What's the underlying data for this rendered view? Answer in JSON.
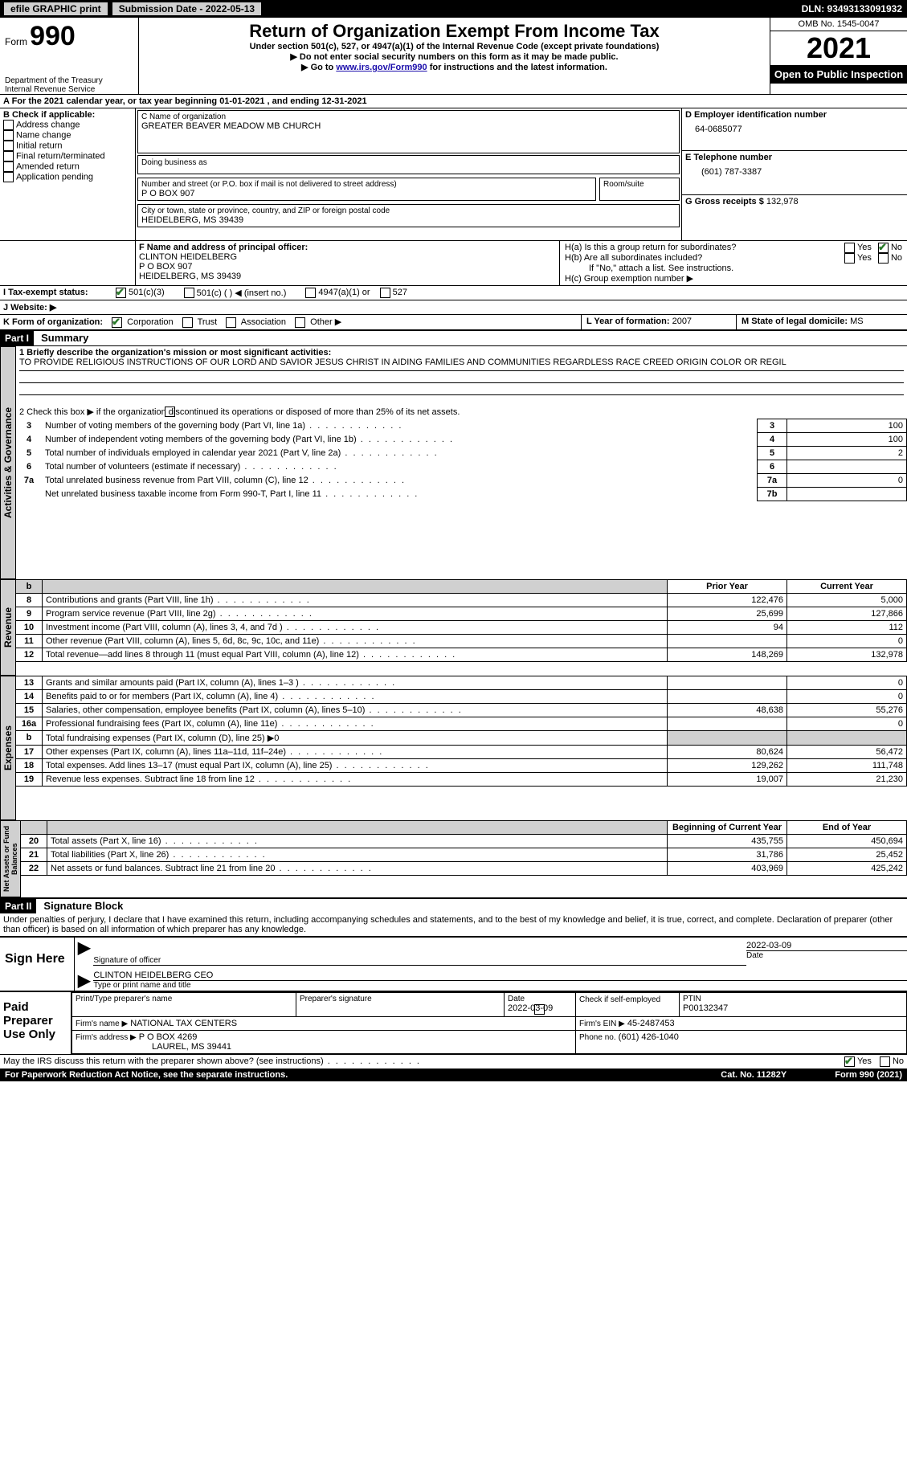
{
  "topbar": {
    "efile_label": "efile GRAPHIC print",
    "submission_label": "Submission Date - 2022-05-13",
    "dln_label": "DLN: 93493133091932"
  },
  "header": {
    "form_word": "Form",
    "form_number": "990",
    "dept": "Department of the Treasury",
    "irs": "Internal Revenue Service",
    "title": "Return of Organization Exempt From Income Tax",
    "sub1": "Under section 501(c), 527, or 4947(a)(1) of the Internal Revenue Code (except private foundations)",
    "sub2": "▶ Do not enter social security numbers on this form as it may be made public.",
    "sub3_pre": "▶ Go to ",
    "sub3_link": "www.irs.gov/Form990",
    "sub3_post": " for instructions and the latest information.",
    "omb": "OMB No. 1545-0047",
    "year": "2021",
    "open": "Open to Public Inspection"
  },
  "period": {
    "a_line": "A For the 2021 calendar year, or tax year beginning 01-01-2021    , and ending 12-31-2021"
  },
  "sectionB": {
    "heading": "B Check if applicable:",
    "items": [
      "Address change",
      "Name change",
      "Initial return",
      "Final return/terminated",
      "Amended return",
      "Application pending"
    ]
  },
  "sectionC": {
    "name_lbl": "C Name of organization",
    "name": "GREATER BEAVER MEADOW MB CHURCH",
    "dba_lbl": "Doing business as",
    "dba": "",
    "street_lbl": "Number and street (or P.O. box if mail is not delivered to street address)",
    "room_lbl": "Room/suite",
    "street": "P O BOX 907",
    "city_lbl": "City or town, state or province, country, and ZIP or foreign postal code",
    "city": "HEIDELBERG, MS  39439"
  },
  "sectionD": {
    "lbl": "D Employer identification number",
    "val": "64-0685077"
  },
  "sectionE": {
    "lbl": "E Telephone number",
    "val": "(601) 787-3387"
  },
  "sectionG": {
    "lbl": "G Gross receipts $",
    "val": "132,978"
  },
  "sectionF": {
    "lbl": "F  Name and address of principal officer:",
    "name": "CLINTON HEIDELBERG",
    "street": "P O BOX 907",
    "city": "HEIDELBERG, MS  39439"
  },
  "sectionH": {
    "a": "H(a)  Is this a group return for subordinates?",
    "a_yes": "Yes",
    "a_no": "No",
    "b": "H(b)  Are all subordinates included?",
    "b_yes": "Yes",
    "b_no": "No",
    "b_note": "If \"No,\" attach a list. See instructions.",
    "c": "H(c)  Group exemption number ▶"
  },
  "sectionI": {
    "lbl": "I  Tax-exempt status:",
    "c3": "501(c)(3)",
    "c_blank": "501(c) (   ) ◀ (insert no.)",
    "a4947": "4947(a)(1) or",
    "s527": "527"
  },
  "sectionJ": {
    "lbl": "J  Website: ▶"
  },
  "sectionK": {
    "lbl": "K Form of organization:",
    "corp": "Corporation",
    "trust": "Trust",
    "assoc": "Association",
    "other": "Other ▶"
  },
  "sectionL": {
    "lbl": "L Year of formation:",
    "val": "2007"
  },
  "sectionM": {
    "lbl": "M State of legal domicile:",
    "val": "MS"
  },
  "part1": {
    "bar": "Part I",
    "title": "Summary"
  },
  "summary": {
    "line1_lbl": "1  Briefly describe the organization's mission or most significant activities:",
    "line1_text": "TO PROVIDE RELIGIOUS INSTRUCTIONS OF OUR LORD AND SAVIOR JESUS CHRIST IN AIDING FAMILIES AND COMMUNITIES REGARDLESS RACE CREED ORIGIN COLOR OR REGIL",
    "line2": "2  Check this box ▶        if the organization discontinued its operations or disposed of more than 25% of its net assets.",
    "rows_top": [
      {
        "n": "3",
        "d": "Number of voting members of the governing body (Part VI, line 1a)",
        "box": "3",
        "v": "100"
      },
      {
        "n": "4",
        "d": "Number of independent voting members of the governing body (Part VI, line 1b)",
        "box": "4",
        "v": "100"
      },
      {
        "n": "5",
        "d": "Total number of individuals employed in calendar year 2021 (Part V, line 2a)",
        "box": "5",
        "v": "2"
      },
      {
        "n": "6",
        "d": "Total number of volunteers (estimate if necessary)",
        "box": "6",
        "v": ""
      },
      {
        "n": "7a",
        "d": "Total unrelated business revenue from Part VIII, column (C), line 12",
        "box": "7a",
        "v": "0"
      },
      {
        "n": "",
        "d": "Net unrelated business taxable income from Form 990-T, Part I, line 11",
        "box": "7b",
        "v": ""
      }
    ],
    "col_prior": "Prior Year",
    "col_current": "Current Year",
    "rev_rows": [
      {
        "n": "8",
        "d": "Contributions and grants (Part VIII, line 1h)",
        "p": "122,476",
        "c": "5,000"
      },
      {
        "n": "9",
        "d": "Program service revenue (Part VIII, line 2g)",
        "p": "25,699",
        "c": "127,866"
      },
      {
        "n": "10",
        "d": "Investment income (Part VIII, column (A), lines 3, 4, and 7d )",
        "p": "94",
        "c": "112"
      },
      {
        "n": "11",
        "d": "Other revenue (Part VIII, column (A), lines 5, 6d, 8c, 9c, 10c, and 11e)",
        "p": "",
        "c": "0"
      },
      {
        "n": "12",
        "d": "Total revenue—add lines 8 through 11 (must equal Part VIII, column (A), line 12)",
        "p": "148,269",
        "c": "132,978"
      }
    ],
    "exp_rows": [
      {
        "n": "13",
        "d": "Grants and similar amounts paid (Part IX, column (A), lines 1–3 )",
        "p": "",
        "c": "0"
      },
      {
        "n": "14",
        "d": "Benefits paid to or for members (Part IX, column (A), line 4)",
        "p": "",
        "c": "0"
      },
      {
        "n": "15",
        "d": "Salaries, other compensation, employee benefits (Part IX, column (A), lines 5–10)",
        "p": "48,638",
        "c": "55,276"
      },
      {
        "n": "16a",
        "d": "Professional fundraising fees (Part IX, column (A), line 11e)",
        "p": "",
        "c": "0"
      },
      {
        "n": "b",
        "d": "Total fundraising expenses (Part IX, column (D), line 25) ▶0",
        "p": "SHADE",
        "c": "SHADE"
      },
      {
        "n": "17",
        "d": "Other expenses (Part IX, column (A), lines 11a–11d, 11f–24e)",
        "p": "80,624",
        "c": "56,472"
      },
      {
        "n": "18",
        "d": "Total expenses. Add lines 13–17 (must equal Part IX, column (A), line 25)",
        "p": "129,262",
        "c": "111,748"
      },
      {
        "n": "19",
        "d": "Revenue less expenses. Subtract line 18 from line 12",
        "p": "19,007",
        "c": "21,230"
      }
    ],
    "col_begin": "Beginning of Current Year",
    "col_end": "End of Year",
    "na_rows": [
      {
        "n": "20",
        "d": "Total assets (Part X, line 16)",
        "p": "435,755",
        "c": "450,694"
      },
      {
        "n": "21",
        "d": "Total liabilities (Part X, line 26)",
        "p": "31,786",
        "c": "25,452"
      },
      {
        "n": "22",
        "d": "Net assets or fund balances. Subtract line 21 from line 20",
        "p": "403,969",
        "c": "425,242"
      }
    ]
  },
  "vtabs": {
    "gov": "Activities & Governance",
    "rev": "Revenue",
    "exp": "Expenses",
    "na": "Net Assets or Fund Balances"
  },
  "part2": {
    "bar": "Part II",
    "title": "Signature Block"
  },
  "sig": {
    "perjury": "Under penalties of perjury, I declare that I have examined this return, including accompanying schedules and statements, and to the best of my knowledge and belief, it is true, correct, and complete. Declaration of preparer (other than officer) is based on all information of which preparer has any knowledge.",
    "sign_here": "Sign Here",
    "sig_officer_lbl": "Signature of officer",
    "sig_date": "2022-03-09",
    "date_lbl": "Date",
    "name_title": "CLINTON HEIDELBERG CEO",
    "name_title_lbl": "Type or print name and title",
    "paid": "Paid Preparer Use Only",
    "prep_name_lbl": "Print/Type preparer's name",
    "prep_sig_lbl": "Preparer's signature",
    "prep_date_lbl": "Date",
    "prep_date": "2022-03-09",
    "self_emp": "Check         if self-employed",
    "ptin_lbl": "PTIN",
    "ptin": "P00132347",
    "firm_name_lbl": "Firm's name     ▶",
    "firm_name": "NATIONAL TAX CENTERS",
    "firm_ein_lbl": "Firm's EIN ▶",
    "firm_ein": "45-2487453",
    "firm_addr_lbl": "Firm's address ▶",
    "firm_addr1": "P O BOX 4269",
    "firm_addr2": "LAUREL, MS  39441",
    "phone_lbl": "Phone no.",
    "phone": "(601) 426-1040",
    "discuss": "May the IRS discuss this return with the preparer shown above? (see instructions)",
    "yes": "Yes",
    "no": "No"
  },
  "footer": {
    "pra": "For Paperwork Reduction Act Notice, see the separate instructions.",
    "cat": "Cat. No. 11282Y",
    "form": "Form 990 (2021)"
  },
  "colors": {
    "shade": "#d0d0d0",
    "link": "#1a0dab",
    "check_green": "#2a7a2a"
  }
}
